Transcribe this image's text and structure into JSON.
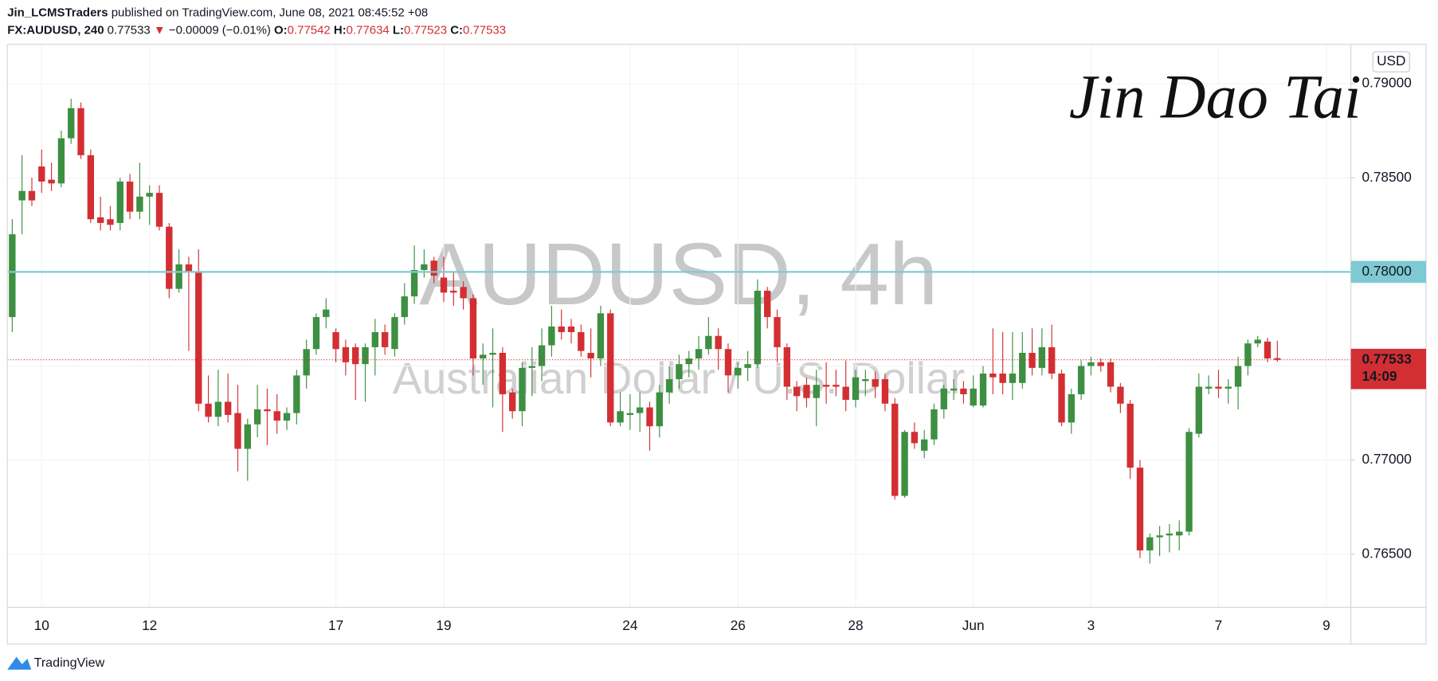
{
  "header": {
    "publisher": "Jin_LCMSTraders",
    "published": "published on TradingView.com, June 08, 2021 08:45:52 +08",
    "symbol": "FX:AUDUSD, 240",
    "change_arrow": "▼",
    "change": "−0.00009 (−0.01%)",
    "ohlc_labels": [
      "O:",
      "H:",
      "L:",
      "C:"
    ]
  },
  "footer": "TradingView",
  "signature": "Jin Dao Tai",
  "chart_data": {
    "type": "candlestick",
    "title": "AUDUSD, 4h",
    "subtitle": "Australian Dollar / U.S. Dollar",
    "currency": "USD",
    "countdown": "14:09",
    "up_color": "#3d8f41",
    "down_color": "#d32f33",
    "grid": true,
    "ylim": [
      0.76218,
      0.79209
    ],
    "yticks": [
      {
        "value": 0.765,
        "label": "0.76500"
      },
      {
        "value": 0.77,
        "label": "0.77000"
      },
      {
        "value": 0.775,
        "label": "0.77500"
      },
      {
        "value": 0.78,
        "label": "0.78000"
      },
      {
        "value": 0.785,
        "label": "0.78500"
      },
      {
        "value": 0.79,
        "label": "0.79000"
      }
    ],
    "hline": {
      "value": 0.78,
      "label": "0.78000",
      "color": "#7fcad2"
    },
    "categories": [
      null,
      null,
      null,
      "10",
      null,
      null,
      null,
      null,
      null,
      null,
      null,
      null,
      null,
      null,
      "12",
      null,
      null,
      null,
      null,
      null,
      null,
      null,
      null,
      null,
      null,
      null,
      null,
      null,
      null,
      null,
      null,
      null,
      null,
      "17",
      null,
      null,
      null,
      null,
      null,
      null,
      null,
      null,
      null,
      null,
      "19",
      null,
      null,
      null,
      null,
      null,
      null,
      null,
      null,
      null,
      null,
      null,
      null,
      null,
      null,
      null,
      null,
      null,
      null,
      "24",
      null,
      null,
      null,
      null,
      null,
      null,
      null,
      null,
      null,
      null,
      "26",
      null,
      null,
      null,
      null,
      null,
      null,
      null,
      null,
      null,
      null,
      null,
      "28",
      null,
      null,
      null,
      null,
      null,
      null,
      null,
      null,
      null,
      null,
      null,
      "Jun",
      null,
      null,
      null,
      null,
      null,
      null,
      null,
      null,
      null,
      null,
      null,
      "3",
      null,
      null,
      null,
      null,
      null,
      null,
      null,
      null,
      null,
      null,
      null,
      null,
      "7",
      null,
      null,
      null,
      null,
      null,
      null,
      null,
      null,
      null,
      null,
      "9",
      null,
      null
    ],
    "open": [
      0.7776,
      0.7838,
      0.7843,
      0.7856,
      0.7849,
      0.7847,
      0.7871,
      0.7887,
      0.7862,
      0.7829,
      0.7828,
      0.7826,
      0.7848,
      0.7832,
      0.784,
      0.7842,
      0.7824,
      0.7791,
      0.7804,
      0.78,
      0.773,
      0.7723,
      0.7731,
      0.7725,
      0.7706,
      0.7719,
      0.7727,
      0.7726,
      0.7721,
      0.7725,
      0.7745,
      0.7759,
      0.7776,
      0.7768,
      0.776,
      0.776,
      0.7751,
      0.776,
      0.7768,
      0.7759,
      0.7776,
      0.7787,
      0.7801,
      0.7806,
      0.7797,
      0.779,
      0.7792,
      0.7786,
      0.7754,
      0.7756,
      0.7757,
      0.7736,
      0.7726,
      0.7749,
      0.775,
      0.7761,
      0.7771,
      0.7771,
      0.7768,
      0.7757,
      0.7754,
      0.7778,
      0.772,
      0.7724,
      0.7725,
      0.7728,
      0.7718,
      0.7736,
      0.7743,
      0.7751,
      0.7754,
      0.7759,
      0.7766,
      0.7759,
      0.7745,
      0.7749,
      0.7751,
      0.779,
      0.7776,
      0.776,
      0.7739,
      0.774,
      0.7733,
      0.774,
      0.774,
      0.7739,
      0.7732,
      0.7742,
      0.7743,
      0.7743,
      0.773,
      0.7681,
      0.7715,
      0.7705,
      0.7711,
      0.7727,
      0.7737,
      0.7738,
      0.7729,
      0.7729,
      0.7746,
      0.7746,
      0.7741,
      0.7741,
      0.7757,
      0.7749,
      0.776,
      0.7746,
      0.772,
      0.7735,
      0.775,
      0.7752,
      0.7752,
      0.7739,
      0.773,
      0.7696,
      0.7652,
      0.7659,
      0.766,
      0.766,
      0.7662,
      0.7714,
      0.7738,
      0.7739,
      0.7738,
      0.7739,
      0.775,
      0.7762,
      0.7763,
      0.77542,
      null,
      null,
      null,
      null,
      null,
      null,
      null
    ],
    "high": [
      0.7828,
      0.7862,
      0.785,
      0.7865,
      0.7858,
      0.7875,
      0.7892,
      0.789,
      0.7865,
      0.784,
      0.7835,
      0.785,
      0.7852,
      0.7858,
      0.7846,
      0.7846,
      0.7826,
      0.7812,
      0.7808,
      0.7812,
      0.7745,
      0.7748,
      0.7746,
      0.774,
      0.7722,
      0.774,
      0.7738,
      0.7735,
      0.7728,
      0.7748,
      0.7764,
      0.7778,
      0.7786,
      0.777,
      0.7764,
      0.7762,
      0.7762,
      0.7775,
      0.7772,
      0.7778,
      0.7794,
      0.7814,
      0.7812,
      0.7808,
      0.7808,
      0.78,
      0.7795,
      0.7788,
      0.7762,
      0.777,
      0.776,
      0.7738,
      0.7752,
      0.776,
      0.777,
      0.7782,
      0.778,
      0.7775,
      0.7772,
      0.777,
      0.7782,
      0.778,
      0.7736,
      0.7735,
      0.7736,
      0.7731,
      0.774,
      0.775,
      0.7756,
      0.7758,
      0.7766,
      0.7776,
      0.777,
      0.7762,
      0.7752,
      0.7758,
      0.7796,
      0.7792,
      0.778,
      0.7762,
      0.7742,
      0.7744,
      0.7748,
      0.7752,
      0.7748,
      0.7753,
      0.7748,
      0.7748,
      0.7747,
      0.7746,
      0.7733,
      0.7716,
      0.772,
      0.7716,
      0.773,
      0.774,
      0.7743,
      0.7742,
      0.7745,
      0.775,
      0.777,
      0.7768,
      0.7768,
      0.7768,
      0.777,
      0.777,
      0.7772,
      0.7748,
      0.7738,
      0.7753,
      0.7755,
      0.7754,
      0.7754,
      0.7741,
      0.7732,
      0.77,
      0.7661,
      0.7665,
      0.7666,
      0.7668,
      0.7717,
      0.7746,
      0.7745,
      0.7748,
      0.7743,
      0.7755,
      0.7764,
      0.7766,
      0.7765,
      0.77634,
      null,
      null,
      null,
      null,
      null,
      null,
      null
    ],
    "low": [
      0.7768,
      0.782,
      0.7835,
      0.7842,
      0.7843,
      0.7845,
      0.7868,
      0.786,
      0.7826,
      0.7822,
      0.7822,
      0.7822,
      0.7828,
      0.7828,
      0.7825,
      0.7822,
      0.7786,
      0.7789,
      0.7758,
      0.7726,
      0.772,
      0.7718,
      0.772,
      0.7694,
      0.7689,
      0.7712,
      0.7708,
      0.7714,
      0.7716,
      0.7719,
      0.7738,
      0.7756,
      0.777,
      0.7752,
      0.7745,
      0.7732,
      0.7731,
      0.7745,
      0.7756,
      0.7755,
      0.7772,
      0.7783,
      0.7797,
      0.7794,
      0.7784,
      0.7782,
      0.778,
      0.7745,
      0.774,
      0.7728,
      0.7715,
      0.7722,
      0.7718,
      0.7734,
      0.7742,
      0.7755,
      0.7764,
      0.7762,
      0.7755,
      0.7744,
      0.775,
      0.7718,
      0.7718,
      0.7716,
      0.7715,
      0.7705,
      0.7712,
      0.773,
      0.7738,
      0.7744,
      0.7748,
      0.7756,
      0.7748,
      0.7736,
      0.7738,
      0.7742,
      0.7749,
      0.777,
      0.7752,
      0.7732,
      0.7726,
      0.7728,
      0.7718,
      0.773,
      0.7734,
      0.7726,
      0.7728,
      0.7734,
      0.7733,
      0.7726,
      0.7679,
      0.768,
      0.7706,
      0.7701,
      0.7708,
      0.7722,
      0.7732,
      0.773,
      0.7728,
      0.7728,
      0.7735,
      0.7735,
      0.7732,
      0.7738,
      0.7745,
      0.7745,
      0.7743,
      0.7718,
      0.7714,
      0.7732,
      0.7745,
      0.7747,
      0.7736,
      0.7725,
      0.769,
      0.7648,
      0.7645,
      0.7649,
      0.7651,
      0.7652,
      0.766,
      0.7712,
      0.7735,
      0.7733,
      0.773,
      0.7727,
      0.7745,
      0.776,
      0.7752,
      0.77523,
      null,
      null,
      null,
      null,
      null,
      null,
      null
    ],
    "close": [
      0.782,
      0.7843,
      0.7838,
      0.7848,
      0.7847,
      0.7871,
      0.7887,
      0.7862,
      0.7828,
      0.7826,
      0.7825,
      0.7848,
      0.7832,
      0.784,
      0.7842,
      0.7824,
      0.7791,
      0.7804,
      0.78,
      0.773,
      0.7723,
      0.7731,
      0.7724,
      0.7706,
      0.7719,
      0.7727,
      0.7726,
      0.7721,
      0.7725,
      0.7745,
      0.7759,
      0.7776,
      0.778,
      0.7759,
      0.7752,
      0.7751,
      0.776,
      0.7768,
      0.776,
      0.7776,
      0.7787,
      0.7801,
      0.7804,
      0.7798,
      0.7789,
      0.7789,
      0.7786,
      0.7754,
      0.7756,
      0.7757,
      0.7735,
      0.7726,
      0.7749,
      0.775,
      0.7761,
      0.7771,
      0.7768,
      0.7768,
      0.7758,
      0.7754,
      0.7778,
      0.772,
      0.7726,
      0.7725,
      0.7728,
      0.7718,
      0.7736,
      0.7743,
      0.7751,
      0.7754,
      0.7759,
      0.7766,
      0.7759,
      0.7745,
      0.7749,
      0.7751,
      0.779,
      0.7776,
      0.776,
      0.7739,
      0.7734,
      0.7733,
      0.774,
      0.7739,
      0.7739,
      0.7732,
      0.7744,
      0.7743,
      0.7739,
      0.773,
      0.7681,
      0.7715,
      0.7709,
      0.7711,
      0.7727,
      0.7738,
      0.7738,
      0.7735,
      0.7738,
      0.7746,
      0.7744,
      0.7741,
      0.7746,
      0.7757,
      0.7749,
      0.776,
      0.7746,
      0.772,
      0.7735,
      0.775,
      0.7752,
      0.775,
      0.7739,
      0.773,
      0.7696,
      0.7652,
      0.7659,
      0.766,
      0.7661,
      0.7662,
      0.7715,
      0.7739,
      0.7739,
      0.7738,
      0.7739,
      0.775,
      0.7762,
      0.7764,
      0.7754,
      0.77533,
      null,
      null,
      null,
      null,
      null,
      null,
      null
    ]
  }
}
